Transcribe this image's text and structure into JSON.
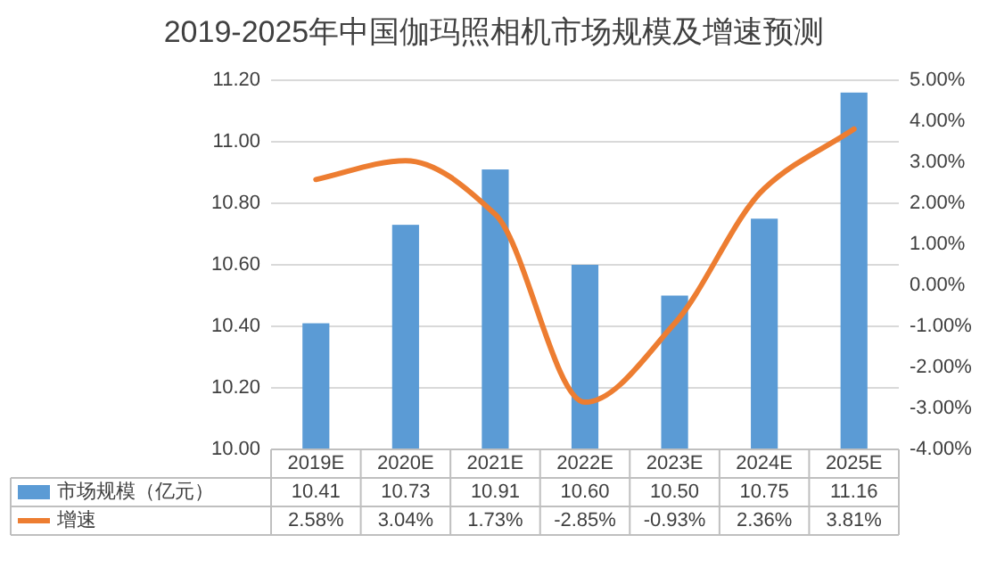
{
  "chart_data": {
    "type": "bar",
    "title": "2019-2025年中国伽玛照相机市场规模及增速预测",
    "categories": [
      "2019E",
      "2020E",
      "2021E",
      "2022E",
      "2023E",
      "2024E",
      "2025E"
    ],
    "series": [
      {
        "name": "市场规模（亿元）",
        "color": "#5b9bd5",
        "values": [
          10.41,
          10.73,
          10.91,
          10.6,
          10.5,
          10.75,
          11.16
        ],
        "value_labels": [
          "10.41",
          "10.73",
          "10.91",
          "10.60",
          "10.50",
          "10.75",
          "11.16"
        ]
      },
      {
        "name": "增速",
        "type": "line",
        "axis": "y2",
        "color": "#ed7d31",
        "values": [
          2.58,
          3.04,
          1.73,
          -2.85,
          -0.93,
          2.36,
          3.81
        ],
        "value_labels": [
          "2.58%",
          "3.04%",
          "1.73%",
          "-2.85%",
          "-0.93%",
          "2.36%",
          "3.81%"
        ]
      }
    ],
    "ylim": [
      10,
      11.2
    ],
    "yticks": [
      {
        "value": 10,
        "label": "10.00"
      },
      {
        "value": 10.2,
        "label": "10.20"
      },
      {
        "value": 10.4,
        "label": "10.40"
      },
      {
        "value": 10.6,
        "label": "10.60"
      },
      {
        "value": 10.8,
        "label": "10.80"
      },
      {
        "value": 11,
        "label": "11.00"
      },
      {
        "value": 11.2,
        "label": "11.20"
      }
    ],
    "y2lim": [
      -4,
      5
    ],
    "y2ticks": [
      {
        "value": -4,
        "label": "-4.00%"
      },
      {
        "value": -3,
        "label": "-3.00%"
      },
      {
        "value": -2,
        "label": "-2.00%"
      },
      {
        "value": -1,
        "label": "-1.00%"
      },
      {
        "value": 0,
        "label": "0.00%"
      },
      {
        "value": 1,
        "label": "1.00%"
      },
      {
        "value": 2,
        "label": "2.00%"
      },
      {
        "value": 3,
        "label": "3.00%"
      },
      {
        "value": 4,
        "label": "4.00%"
      },
      {
        "value": 5,
        "label": "5.00%"
      }
    ],
    "grid": "y",
    "legend": "bottom"
  }
}
